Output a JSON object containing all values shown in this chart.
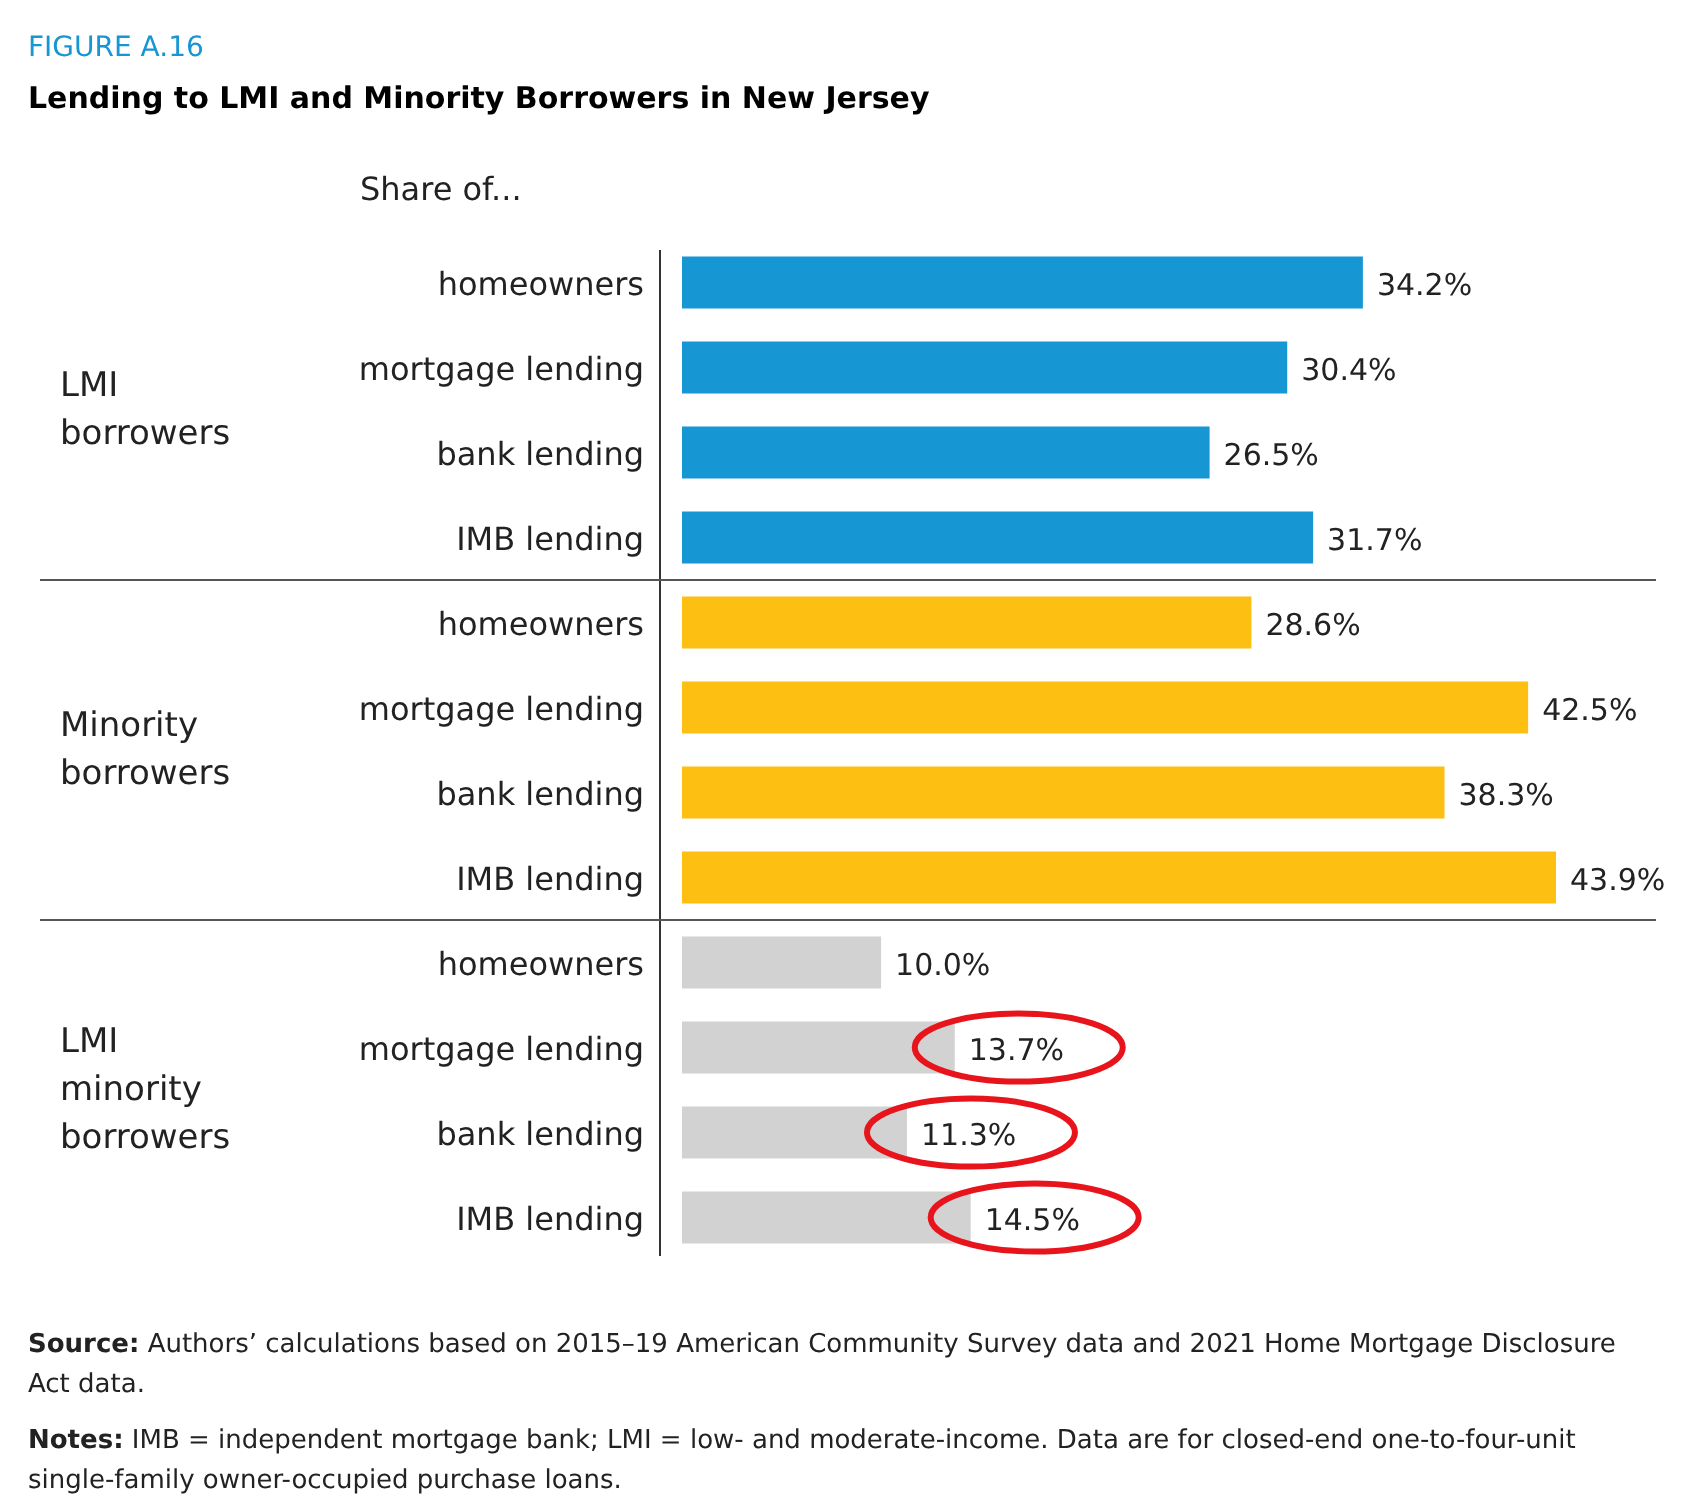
{
  "chart_data": {
    "type": "bar",
    "orientation": "horizontal",
    "title": "Lending to LMI and Minority Borrowers in New Jersey",
    "subtitle": "FIGURE A.16",
    "categories": [
      "homeowners",
      "mortgage lending",
      "bank lending",
      "IMB lending",
      "homeowners",
      "mortgage lending",
      "bank lending",
      "IMB lending",
      "homeowners",
      "mortgage lending",
      "bank lending",
      "IMB lending"
    ],
    "values": [
      34.2,
      30.4,
      26.5,
      31.7,
      28.6,
      42.5,
      38.3,
      43.9,
      10.0,
      13.7,
      11.3,
      14.5
    ],
    "value_labels": [
      "34.2%",
      "30.4%",
      "26.5%",
      "31.7%",
      "28.6%",
      "42.5%",
      "38.3%",
      "43.9%",
      "10.0%",
      "13.7%",
      "11.3%",
      "14.5%"
    ],
    "colors": [
      "#1696d2",
      "#1696d2",
      "#1696d2",
      "#1696d2",
      "#fdbf11",
      "#fdbf11",
      "#fdbf11",
      "#fdbf11",
      "#d2d2d2",
      "#d2d2d2",
      "#d2d2d2",
      "#d2d2d2"
    ],
    "annotations": [
      "Share of...",
      "LMI borrowers",
      "Minority borrowers",
      "LMI minority borrowers",
      "Source: Authors’ calculations based on 2015–19 American Community Survey data and 2021 Home Mortgage Disclosure Act data.",
      "Notes: IMB = independent mortgage bank; LMI = low- and moderate-income. Data are for closed-end one-to-four-unit single-family owner-occupied purchase loans."
    ]
  }
}
